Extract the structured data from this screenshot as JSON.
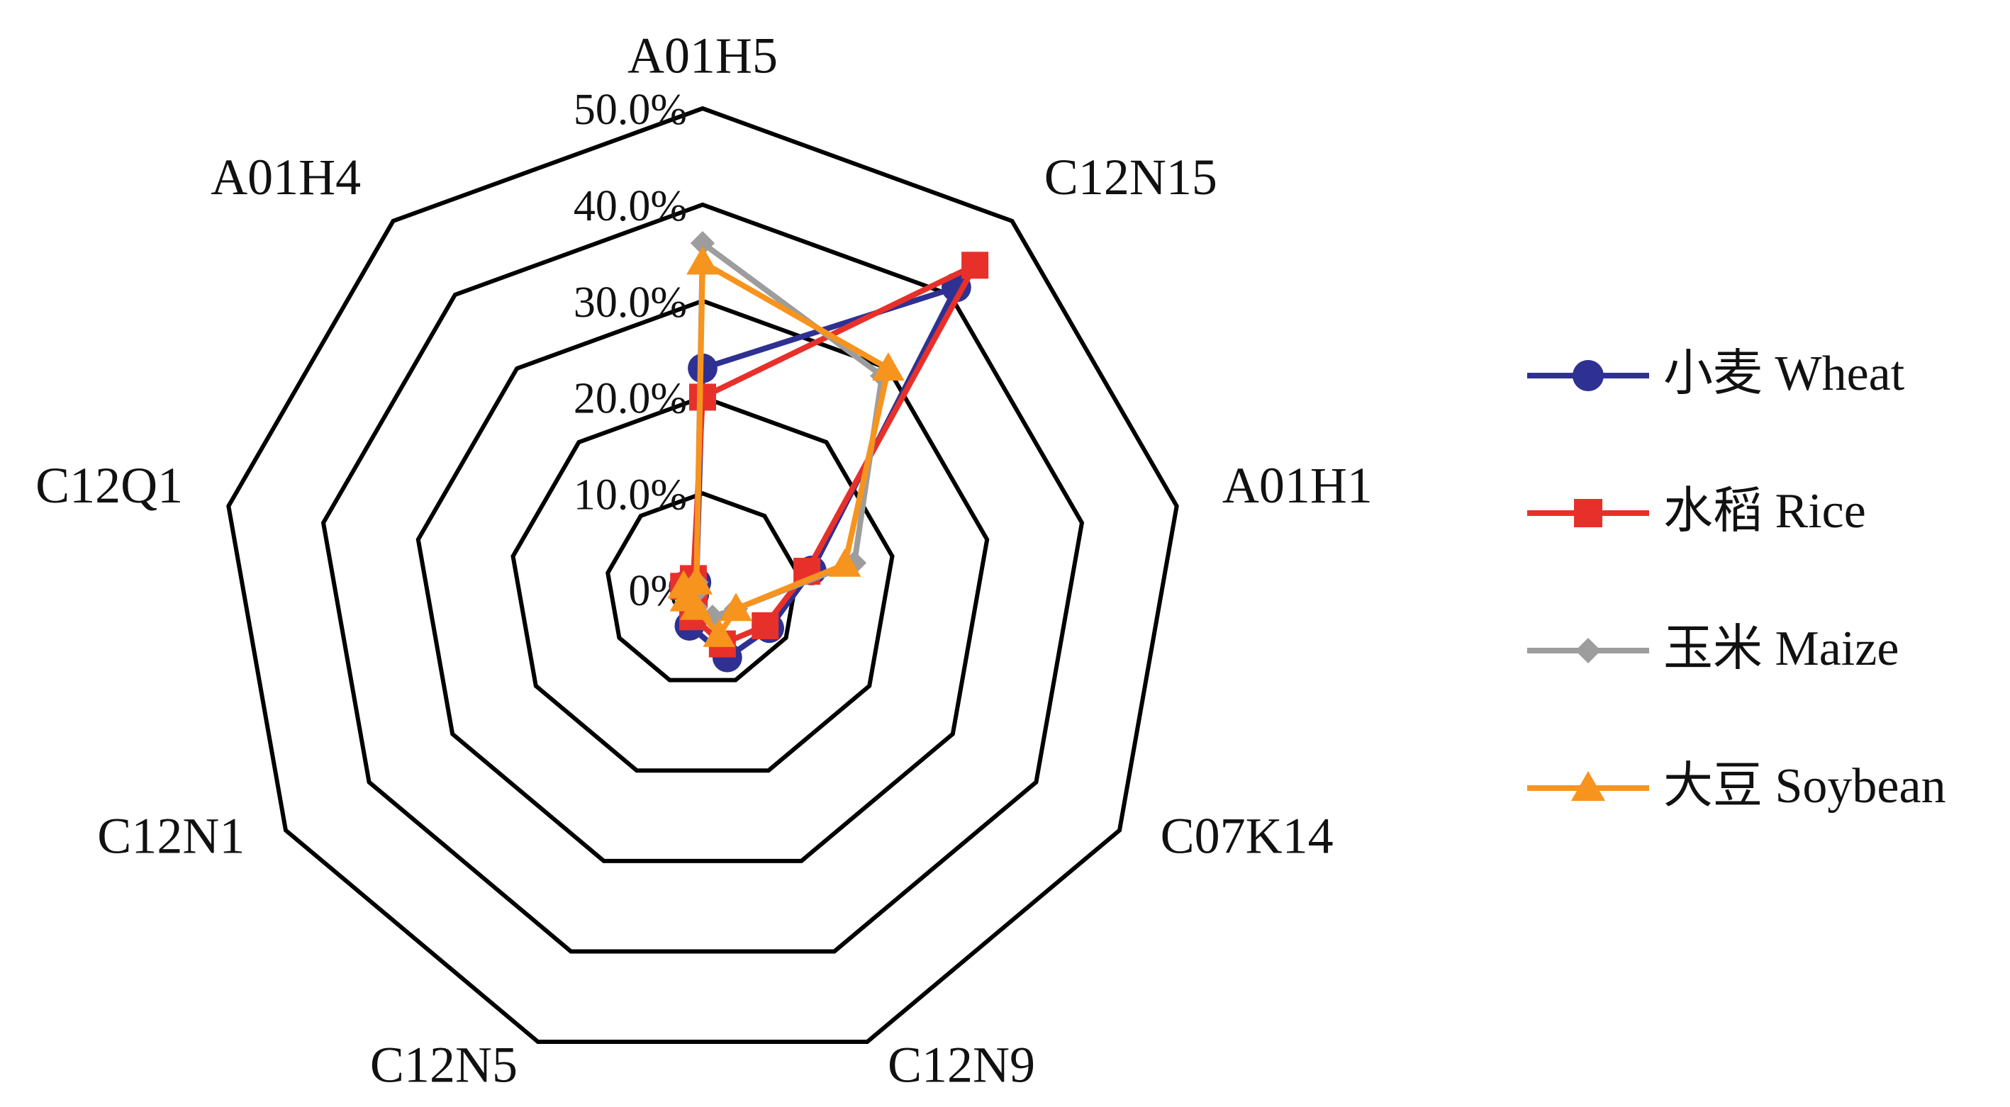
{
  "chart_data": {
    "type": "radar",
    "categories": [
      "A01H5",
      "C12N15",
      "A01H1",
      "C07K14",
      "C12N9",
      "C12N5",
      "C12N1",
      "C12Q1",
      "A01H4"
    ],
    "ylim": [
      0,
      50
    ],
    "yticks": [
      {
        "value": 0,
        "label": "0%"
      },
      {
        "value": 10,
        "label": "10.0%"
      },
      {
        "value": 20,
        "label": "20.0%"
      },
      {
        "value": 30,
        "label": "30.0%"
      },
      {
        "value": 40,
        "label": "40.0%"
      },
      {
        "value": 50,
        "label": "50.0%"
      }
    ],
    "grid": true,
    "legend": "right",
    "series": [
      {
        "name": "小麦 Wheat",
        "color": "#2e3192",
        "marker": "circle",
        "values": [
          23,
          41,
          11.5,
          8,
          7.5,
          4,
          1,
          2,
          1
        ]
      },
      {
        "name": "水稻 Rice",
        "color": "#e8302a",
        "marker": "square",
        "values": [
          20,
          44,
          11,
          7.5,
          6,
          3,
          1,
          2,
          1.5
        ]
      },
      {
        "name": "玉米 Maize",
        "color": "#9d9d9d",
        "marker": "diamond",
        "values": [
          36,
          29,
          16,
          4,
          3,
          2,
          1,
          1,
          1
        ]
      },
      {
        "name": "大豆 Soybean",
        "color": "#f7941d",
        "marker": "triangle",
        "values": [
          34,
          30,
          15,
          4,
          5,
          2,
          2,
          2,
          1
        ]
      }
    ]
  }
}
